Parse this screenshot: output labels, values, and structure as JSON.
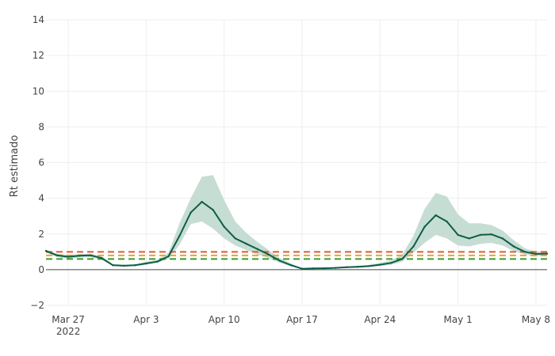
{
  "chart_data": {
    "type": "line",
    "ylabel": "Rt estimado",
    "ylim": [
      -2,
      14
    ],
    "y_ticks": [
      -2,
      0,
      2,
      4,
      6,
      8,
      10,
      12,
      14
    ],
    "y_tick_labels": [
      "−2",
      "0",
      "2",
      "4",
      "6",
      "8",
      "10",
      "12",
      "14"
    ],
    "x_start": "2022-03-25",
    "x_end": "2022-05-09",
    "x_ticks": [
      {
        "date": "2022-03-27",
        "label": "Mar 27",
        "sublabel": "2022"
      },
      {
        "date": "2022-04-03",
        "label": "Apr 3",
        "sublabel": ""
      },
      {
        "date": "2022-04-10",
        "label": "Apr 10",
        "sublabel": ""
      },
      {
        "date": "2022-04-17",
        "label": "Apr 17",
        "sublabel": ""
      },
      {
        "date": "2022-04-24",
        "label": "Apr 24",
        "sublabel": ""
      },
      {
        "date": "2022-05-01",
        "label": "May 1",
        "sublabel": ""
      },
      {
        "date": "2022-05-08",
        "label": "May 8",
        "sublabel": ""
      }
    ],
    "grid": true,
    "colors": {
      "line": "#0d5e47",
      "band": "#bcd7cc",
      "ref_red": "#e0583a",
      "ref_orange": "#e8a23a",
      "ref_green": "#3a9a2a",
      "zero": "#444444",
      "grid": "#eeeeee"
    },
    "reference_lines": [
      {
        "y": 1.0,
        "color": "#e0583a"
      },
      {
        "y": 0.8,
        "color": "#e8a23a"
      },
      {
        "y": 0.6,
        "color": "#3a9a2a"
      }
    ],
    "series": [
      {
        "dates": [
          "2022-03-25",
          "2022-03-26",
          "2022-03-27",
          "2022-03-28",
          "2022-03-29",
          "2022-03-30",
          "2022-03-31",
          "2022-04-01",
          "2022-04-02",
          "2022-04-03",
          "2022-04-04",
          "2022-04-05",
          "2022-04-06",
          "2022-04-07",
          "2022-04-08",
          "2022-04-09",
          "2022-04-10",
          "2022-04-11",
          "2022-04-12",
          "2022-04-13",
          "2022-04-14",
          "2022-04-15",
          "2022-04-16",
          "2022-04-17",
          "2022-04-18",
          "2022-04-19",
          "2022-04-20",
          "2022-04-21",
          "2022-04-22",
          "2022-04-23",
          "2022-04-24",
          "2022-04-25",
          "2022-04-26",
          "2022-04-27",
          "2022-04-28",
          "2022-04-29",
          "2022-04-30",
          "2022-05-01",
          "2022-05-02",
          "2022-05-03",
          "2022-05-04",
          "2022-05-05",
          "2022-05-06",
          "2022-05-07",
          "2022-05-08",
          "2022-05-09"
        ],
        "values": [
          1.05,
          0.8,
          0.72,
          0.78,
          0.8,
          0.65,
          0.25,
          0.22,
          0.25,
          0.35,
          0.45,
          0.75,
          1.9,
          3.2,
          3.8,
          3.35,
          2.4,
          1.75,
          1.45,
          1.15,
          0.85,
          0.5,
          0.25,
          0.05,
          0.07,
          0.08,
          0.1,
          0.14,
          0.16,
          0.2,
          0.28,
          0.38,
          0.6,
          1.3,
          2.4,
          3.05,
          2.7,
          1.95,
          1.75,
          1.95,
          1.98,
          1.75,
          1.3,
          1.0,
          0.88,
          0.9
        ],
        "lower": [
          0.95,
          0.7,
          0.62,
          0.68,
          0.7,
          0.55,
          0.2,
          0.18,
          0.2,
          0.28,
          0.38,
          0.6,
          1.4,
          2.55,
          2.7,
          2.3,
          1.75,
          1.35,
          1.1,
          0.85,
          0.65,
          0.38,
          0.18,
          0.04,
          0.05,
          0.06,
          0.08,
          0.1,
          0.12,
          0.15,
          0.2,
          0.28,
          0.45,
          0.95,
          1.5,
          1.95,
          1.75,
          1.35,
          1.3,
          1.45,
          1.5,
          1.35,
          1.05,
          0.85,
          0.75,
          0.78
        ],
        "upper": [
          1.12,
          0.9,
          0.82,
          0.88,
          0.9,
          0.75,
          0.32,
          0.28,
          0.3,
          0.45,
          0.55,
          0.95,
          2.6,
          4.0,
          5.2,
          5.3,
          3.9,
          2.7,
          2.05,
          1.55,
          1.1,
          0.65,
          0.35,
          0.08,
          0.1,
          0.11,
          0.13,
          0.18,
          0.22,
          0.27,
          0.38,
          0.52,
          0.85,
          1.9,
          3.4,
          4.3,
          4.1,
          3.1,
          2.6,
          2.6,
          2.5,
          2.2,
          1.65,
          1.2,
          1.0,
          1.05
        ]
      }
    ]
  }
}
